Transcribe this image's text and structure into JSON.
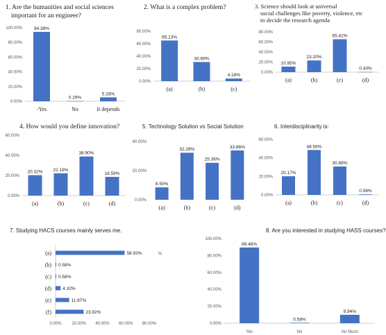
{
  "accent": "#4472C4",
  "chart_data": [
    {
      "type": "bar",
      "title": "1.  Are the humanities and social sciences important for an engineer?",
      "title_lines": [
        "1.  Are the humanities and social sciences",
        "important for an engineer?"
      ],
      "categories": [
        "-Yes",
        "No",
        "It depends"
      ],
      "values": [
        94.38,
        0.29,
        5.33
      ],
      "value_labels": [
        "94.38%",
        "0.29%",
        "5.33%"
      ],
      "ylim": [
        0,
        100
      ],
      "yticks": [
        0,
        20,
        40,
        60,
        80,
        100
      ],
      "ytick_labels": [
        "0.00%",
        "20.00%",
        "40.00%",
        "60.00%",
        "80.00%",
        "100.00%"
      ],
      "grid": false
    },
    {
      "type": "bar",
      "title": "2.    What is a complex problem?",
      "title_lines": [
        "2.    What is a complex problem?"
      ],
      "categories": [
        "(a)",
        "(b)",
        "(c)"
      ],
      "values": [
        65.13,
        30.69,
        4.18
      ],
      "value_labels": [
        "65.13%",
        "30.69%",
        "4.18%"
      ],
      "ylim": [
        0,
        80
      ],
      "yticks": [
        0,
        20,
        40,
        60,
        80
      ],
      "ytick_labels": [
        "0.00%",
        "20.00%",
        "40.00%",
        "60.00%",
        "80.00%"
      ],
      "grid": false
    },
    {
      "type": "bar",
      "title": "3. Science should look at universal social challenges like poverty, violence, etc to decide the research agenda",
      "title_lines": [
        "3. Science should look at universal",
        "social challenges like  poverty, violence, etc",
        "to decide the research agenda"
      ],
      "categories": [
        "(a)",
        "(b)",
        "(c)",
        "(d)"
      ],
      "values": [
        10.95,
        23.2,
        65.42,
        0.43
      ],
      "value_labels": [
        "10.95%",
        "23.20%",
        "65.42%",
        "0.43%"
      ],
      "ylim": [
        0,
        80
      ],
      "yticks": [
        0,
        20,
        40,
        60,
        80
      ],
      "ytick_labels": [
        "0.00%",
        "20.00%",
        "40.00%",
        "60.00%",
        "80.00%"
      ],
      "grid": false
    },
    {
      "type": "bar",
      "title": "4.  How would you define innovation?",
      "title_lines": [
        "4.  How would you define innovation?"
      ],
      "categories": [
        "(a)",
        "(b)",
        "(c)",
        "(d)"
      ],
      "values": [
        20.32,
        22.19,
        38.9,
        18.59
      ],
      "value_labels": [
        "20.32%",
        "22.19%",
        "38.90%",
        "18.59%"
      ],
      "ylim": [
        0,
        60
      ],
      "yticks": [
        0,
        20,
        40,
        60
      ],
      "ytick_labels": [
        "0.00%",
        "20.00%",
        "40.00%",
        "60.00%"
      ],
      "grid": false
    },
    {
      "type": "bar",
      "title": "5.    Technology Solution vs Social Solution",
      "title_lines": [
        "5.    Technology Solution vs Social Solution"
      ],
      "categories": [
        "(a)",
        "(b)",
        "(c)",
        "(d)"
      ],
      "values": [
        8.5,
        32.28,
        25.36,
        33.86
      ],
      "value_labels": [
        "8.50%",
        "32.28%",
        "25.36%",
        "33.86%"
      ],
      "ylim": [
        0,
        40
      ],
      "yticks": [
        0,
        20,
        40
      ],
      "ytick_labels": [
        "0.00%",
        "20.00%",
        "40.00%"
      ],
      "grid": false
    },
    {
      "type": "bar",
      "title": "6.    Interdisciplinarity is:",
      "title_lines": [
        "6.    Interdisciplinarity is:"
      ],
      "categories": [
        "(a)",
        "(b)",
        "(c)",
        "(d)"
      ],
      "values": [
        20.17,
        48.56,
        30.69,
        0.58
      ],
      "value_labels": [
        "20.17%",
        "48.56%",
        "30.69%",
        "0.58%"
      ],
      "ylim": [
        0,
        60
      ],
      "yticks": [
        0,
        20,
        40,
        60
      ],
      "ytick_labels": [
        "0.00%",
        "20.00%",
        "40.00%",
        "60.00%"
      ],
      "grid": false
    },
    {
      "type": "bar",
      "orientation": "horizontal",
      "title": "7.    Studying HACS courses mainly serves me.",
      "title_lines": [
        "7.    Studying HACS courses mainly serves me."
      ],
      "categories": [
        "(a)",
        "(b)",
        "(c)",
        "(d)",
        "(e)",
        "(f)"
      ],
      "values": [
        58.93,
        0.58,
        0.58,
        4.32,
        11.67,
        23.92
      ],
      "value_labels": [
        "58.93%",
        "0.58%",
        "0.58%",
        "4.32%",
        "11.67%",
        "23.92%"
      ],
      "xlim": [
        0,
        80
      ],
      "xticks": [
        0,
        20,
        40,
        60,
        80
      ],
      "xtick_labels": [
        "0.00%",
        "20.00%",
        "40.00%",
        "60.00%",
        "80.00%"
      ],
      "unit_label": "%",
      "grid": false
    },
    {
      "type": "bar",
      "title": "8.  Are you interested in studying HASS courses?",
      "title_lines": [
        "8.  Are you interested in studying HASS courses?"
      ],
      "categories": [
        "Yes",
        "No",
        "No Much"
      ],
      "values": [
        89.48,
        0.58,
        9.94
      ],
      "value_labels": [
        "89.48%",
        "0.58%",
        "9.94%"
      ],
      "ylim": [
        0,
        100
      ],
      "yticks": [
        0,
        20,
        40,
        60,
        80,
        100
      ],
      "ytick_labels": [
        "0.00%",
        "20.00%",
        "40.00%",
        "60.00%",
        "80.00%",
        "100.00%"
      ],
      "grid": false
    }
  ]
}
